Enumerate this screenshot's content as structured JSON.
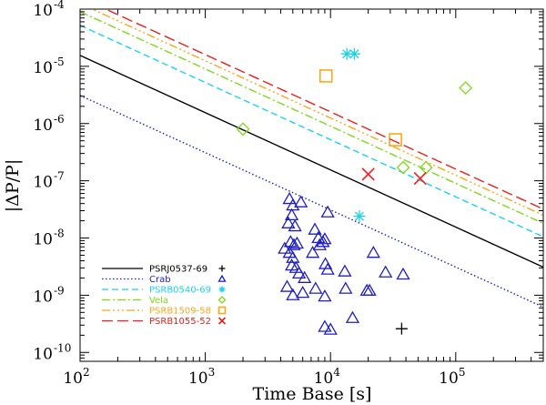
{
  "chart_data": {
    "type": "scatter",
    "xlabel": "Time Base [s]",
    "ylabel": "|ΔP/P|",
    "xscale": "log",
    "yscale": "log",
    "xlim": [
      100,
      500000
    ],
    "ylim": [
      7e-11,
      0.0001
    ],
    "x_ticks": [
      {
        "value": 100,
        "base": "10",
        "exp": "2"
      },
      {
        "value": 1000,
        "base": "10",
        "exp": "3"
      },
      {
        "value": 10000,
        "base": "10",
        "exp": "4"
      },
      {
        "value": 100000,
        "base": "10",
        "exp": "5"
      }
    ],
    "y_ticks": [
      {
        "value": 1e-10,
        "base": "10",
        "exp": "-10"
      },
      {
        "value": 1e-09,
        "base": "10",
        "exp": "-9"
      },
      {
        "value": 1e-08,
        "base": "10",
        "exp": "-8"
      },
      {
        "value": 1e-07,
        "base": "10",
        "exp": "-7"
      },
      {
        "value": 1e-06,
        "base": "10",
        "exp": "-6"
      },
      {
        "value": 1e-05,
        "base": "10",
        "exp": "-5"
      },
      {
        "value": 0.0001,
        "base": "10",
        "exp": "-4"
      }
    ],
    "series": [
      {
        "name": "PSRJ0537-69",
        "color": "#000000",
        "dash": "",
        "marker": "plus",
        "marker_glyph": "+",
        "line": [
          [
            100,
            1.55e-05
          ],
          [
            500000,
            3.1e-09
          ]
        ],
        "points": [
          [
            37000,
            2.6e-10
          ]
        ]
      },
      {
        "name": "Crab",
        "color": "#1f1fbf",
        "dash": "1.5,2.5",
        "marker": "triangle",
        "marker_glyph": "△",
        "line": [
          [
            100,
            3.1e-06
          ],
          [
            500000,
            6.2e-10
          ]
        ],
        "points": [
          [
            4700,
            4.8e-08
          ],
          [
            5000,
            3.7e-08
          ],
          [
            5800,
            4.2e-08
          ],
          [
            4900,
            2.5e-08
          ],
          [
            4600,
            1.8e-08
          ],
          [
            5200,
            1.6e-08
          ],
          [
            4300,
            6.5e-09
          ],
          [
            4800,
            8.5e-09
          ],
          [
            5100,
            7.5e-09
          ],
          [
            5400,
            8e-09
          ],
          [
            4700,
            5.5e-09
          ],
          [
            5000,
            4.5e-09
          ],
          [
            4900,
            3.3e-09
          ],
          [
            5300,
            3e-09
          ],
          [
            5600,
            2.4e-09
          ],
          [
            6200,
            2e-09
          ],
          [
            4500,
            1.4e-09
          ],
          [
            5000,
            1e-09
          ],
          [
            6000,
            1.1e-09
          ],
          [
            7500,
            1.4e-08
          ],
          [
            8000,
            1e-08
          ],
          [
            8200,
            7.5e-09
          ],
          [
            8700,
            8.5e-09
          ],
          [
            7200,
            5.5e-09
          ],
          [
            9500,
            2.8e-08
          ],
          [
            9000,
            9.5e-09
          ],
          [
            9100,
            3.5e-09
          ],
          [
            9500,
            2.8e-09
          ],
          [
            7600,
            1.3e-09
          ],
          [
            9000,
            9.5e-10
          ],
          [
            13000,
            2.6e-09
          ],
          [
            13200,
            1.3e-09
          ],
          [
            19500,
            1.2e-09
          ],
          [
            20500,
            1.2e-09
          ],
          [
            22000,
            5.5e-09
          ],
          [
            27500,
            2.5e-09
          ],
          [
            38000,
            2.3e-09
          ],
          [
            9000,
            2.8e-10
          ],
          [
            10000,
            2.5e-10
          ],
          [
            15000,
            4e-10
          ]
        ]
      },
      {
        "name": "PSRB0540-69",
        "color": "#19d2f0",
        "dash": "7,4",
        "marker": "asterisk",
        "marker_glyph": "✳",
        "line": [
          [
            100,
            5.2e-05
          ],
          [
            500000,
            1.05e-08
          ]
        ],
        "points": [
          [
            13500,
            1.65e-05
          ],
          [
            15500,
            1.65e-05
          ],
          [
            17000,
            2.4e-08
          ]
        ]
      },
      {
        "name": "Vela",
        "color": "#7fd81e",
        "dash": "9,3,2,3",
        "marker": "diamond",
        "marker_glyph": "◇",
        "line": [
          [
            100,
            9e-05
          ],
          [
            500000,
            1.8e-08
          ]
        ],
        "points": [
          [
            2000,
            8e-07
          ],
          [
            38000,
            1.7e-07
          ],
          [
            58000,
            1.7e-07
          ],
          [
            120000,
            4.2e-06
          ]
        ]
      },
      {
        "name": "PSRB1509-58",
        "color": "#f7a81c",
        "dash": "9,3,2,3,2,3,2,3",
        "marker": "square",
        "marker_glyph": "□",
        "line": [
          [
            100,
            0.000125
          ],
          [
            500000,
            2.5e-08
          ]
        ],
        "points": [
          [
            9200,
            6.8e-06
          ],
          [
            33000,
            5.2e-07
          ]
        ]
      },
      {
        "name": "PSRB1055-52",
        "color": "#e8201e",
        "dash": "12,5",
        "marker": "cross",
        "marker_glyph": "×",
        "line": [
          [
            100,
            0.00016
          ],
          [
            500000,
            3.2e-08
          ]
        ],
        "points": [
          [
            20000,
            1.3e-07
          ],
          [
            52000,
            1.1e-07
          ]
        ]
      }
    ],
    "legend": {
      "position": "bottom-left"
    }
  }
}
